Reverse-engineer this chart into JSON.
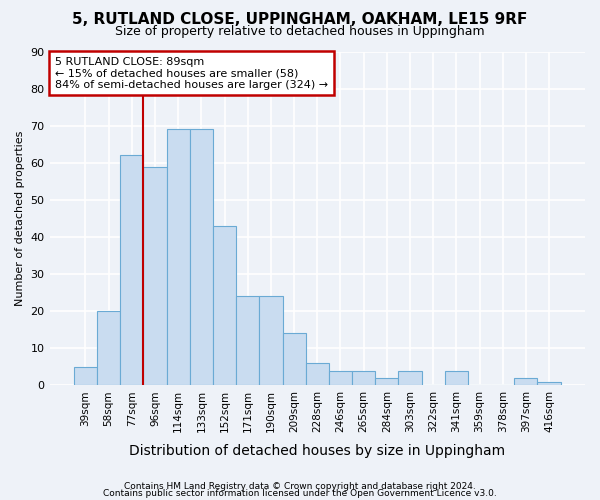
{
  "title": "5, RUTLAND CLOSE, UPPINGHAM, OAKHAM, LE15 9RF",
  "subtitle": "Size of property relative to detached houses in Uppingham",
  "xlabel": "Distribution of detached houses by size in Uppingham",
  "ylabel": "Number of detached properties",
  "categories": [
    "39sqm",
    "58sqm",
    "77sqm",
    "96sqm",
    "114sqm",
    "133sqm",
    "152sqm",
    "171sqm",
    "190sqm",
    "209sqm",
    "228sqm",
    "246sqm",
    "265sqm",
    "284sqm",
    "303sqm",
    "322sqm",
    "341sqm",
    "359sqm",
    "378sqm",
    "397sqm",
    "416sqm"
  ],
  "values": [
    5,
    20,
    62,
    59,
    69,
    69,
    43,
    24,
    24,
    14,
    6,
    4,
    4,
    2,
    4,
    0,
    4,
    0,
    0,
    2,
    1
  ],
  "bar_color": "#c9dcf0",
  "bar_edge_color": "#6aaad4",
  "vline_x": 3.0,
  "vline_color": "#c00000",
  "annotation_line1": "5 RUTLAND CLOSE: 89sqm",
  "annotation_line2": "← 15% of detached houses are smaller (58)",
  "annotation_line3": "84% of semi-detached houses are larger (324) →",
  "annotation_box_color": "#ffffff",
  "annotation_box_edge": "#c00000",
  "ylim": [
    0,
    90
  ],
  "yticks": [
    0,
    10,
    20,
    30,
    40,
    50,
    60,
    70,
    80,
    90
  ],
  "footer_line1": "Contains HM Land Registry data © Crown copyright and database right 2024.",
  "footer_line2": "Contains public sector information licensed under the Open Government Licence v3.0.",
  "background_color": "#eef2f8",
  "grid_color": "#ffffff",
  "title_fontsize": 11,
  "subtitle_fontsize": 9,
  "xlabel_fontsize": 10,
  "ylabel_fontsize": 8,
  "tick_fontsize": 7.5,
  "footer_fontsize": 6.5
}
